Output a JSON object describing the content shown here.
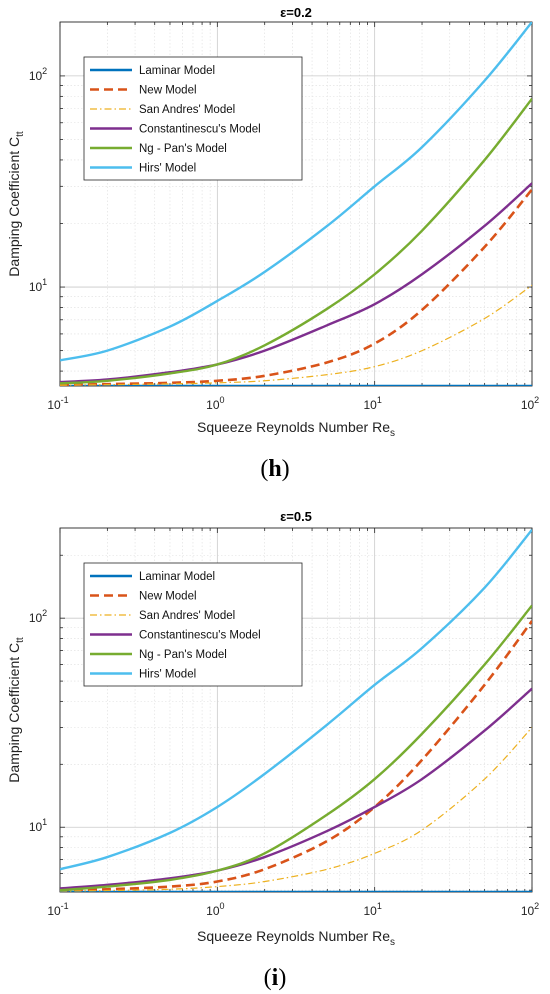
{
  "chart_data": [
    {
      "type": "line",
      "title": "ε=0.2",
      "xlabel": "Squeeze Reynolds Number Re",
      "xlabel_sub": "s",
      "ylabel": "Damping Coefficient C",
      "ylabel_sub": "tt",
      "xscale": "log",
      "yscale": "log",
      "xlim": [
        0.1,
        100
      ],
      "ylim": [
        3.4,
        180
      ],
      "grid": true,
      "legend_position": "top-left",
      "x_ticks": [
        {
          "base": "10",
          "exp": "-1",
          "value": 0.1
        },
        {
          "base": "10",
          "exp": "0",
          "value": 1
        },
        {
          "base": "10",
          "exp": "1",
          "value": 10
        },
        {
          "base": "10",
          "exp": "2",
          "value": 100
        }
      ],
      "y_ticks": [
        {
          "base": "10",
          "exp": "1",
          "value": 10
        },
        {
          "base": "10",
          "exp": "2",
          "value": 100
        }
      ],
      "x": [
        0.1,
        0.2,
        0.5,
        1,
        2,
        5,
        10,
        20,
        50,
        100
      ],
      "series": [
        {
          "name": "Laminar Model",
          "color": "#0072BD",
          "style": "solid",
          "y": [
            3.4,
            3.4,
            3.4,
            3.4,
            3.4,
            3.4,
            3.4,
            3.4,
            3.4,
            3.4
          ]
        },
        {
          "name": "New Model",
          "color": "#D95319",
          "style": "dashed",
          "y": [
            3.45,
            3.47,
            3.52,
            3.6,
            3.8,
            4.4,
            5.4,
            7.8,
            15.5,
            29
          ]
        },
        {
          "name": "San Andres' Model",
          "color": "#EDB120",
          "style": "dashdot",
          "y": [
            3.43,
            3.45,
            3.48,
            3.52,
            3.6,
            3.85,
            4.2,
            5.0,
            7.1,
            10.2
          ]
        },
        {
          "name": "Constantinescu's Model",
          "color": "#7E2F8E",
          "style": "solid",
          "y": [
            3.55,
            3.65,
            3.95,
            4.3,
            5.0,
            6.6,
            8.3,
            11.5,
            19.5,
            31
          ]
        },
        {
          "name": "Ng - Pan's Model",
          "color": "#77AC30",
          "style": "solid",
          "y": [
            3.5,
            3.6,
            3.9,
            4.3,
            5.3,
            7.9,
            11.5,
            18.5,
            40,
            78
          ]
        },
        {
          "name": "Hirs' Model",
          "color": "#4DBEEE",
          "style": "solid",
          "y": [
            4.5,
            5.0,
            6.5,
            8.6,
            11.8,
            19.5,
            30,
            46,
            95,
            180
          ]
        }
      ],
      "panel_label": "h"
    },
    {
      "type": "line",
      "title": "ε=0.5",
      "xlabel": "Squeeze Reynolds Number Re",
      "xlabel_sub": "s",
      "ylabel": "Damping Coefficient C",
      "ylabel_sub": "tt",
      "xscale": "log",
      "yscale": "log",
      "xlim": [
        0.1,
        100
      ],
      "ylim": [
        4.9,
        270
      ],
      "grid": true,
      "legend_position": "top-left",
      "x_ticks": [
        {
          "base": "10",
          "exp": "-1",
          "value": 0.1
        },
        {
          "base": "10",
          "exp": "0",
          "value": 1
        },
        {
          "base": "10",
          "exp": "1",
          "value": 10
        },
        {
          "base": "10",
          "exp": "2",
          "value": 100
        }
      ],
      "y_ticks": [
        {
          "base": "10",
          "exp": "1",
          "value": 10
        },
        {
          "base": "10",
          "exp": "2",
          "value": 100
        }
      ],
      "x": [
        0.1,
        0.2,
        0.5,
        1,
        2,
        5,
        10,
        20,
        50,
        100
      ],
      "series": [
        {
          "name": "Laminar Model",
          "color": "#0072BD",
          "style": "solid",
          "y": [
            4.9,
            4.9,
            4.9,
            4.9,
            4.9,
            4.9,
            4.9,
            4.9,
            4.9,
            4.9
          ]
        },
        {
          "name": "New Model",
          "color": "#D95319",
          "style": "dashed",
          "y": [
            5.0,
            5.05,
            5.2,
            5.5,
            6.3,
            8.6,
            12.5,
            21,
            48,
            97
          ]
        },
        {
          "name": "San Andres' Model",
          "color": "#EDB120",
          "style": "dashdot",
          "y": [
            4.95,
            4.98,
            5.05,
            5.2,
            5.5,
            6.3,
            7.5,
            9.7,
            17,
            30
          ]
        },
        {
          "name": "Constantinescu's Model",
          "color": "#7E2F8E",
          "style": "solid",
          "y": [
            5.1,
            5.3,
            5.7,
            6.2,
            7.2,
            9.6,
            12.5,
            17,
            29,
            46
          ]
        },
        {
          "name": "Ng - Pan's Model",
          "color": "#77AC30",
          "style": "solid",
          "y": [
            5.0,
            5.2,
            5.6,
            6.2,
            7.5,
            11.5,
            17,
            28,
            60,
            115
          ]
        },
        {
          "name": "Hirs' Model",
          "color": "#4DBEEE",
          "style": "solid",
          "y": [
            6.3,
            7.2,
            9.4,
            12.5,
            18,
            31,
            48,
            72,
            140,
            265
          ]
        }
      ],
      "panel_label": "i"
    }
  ]
}
